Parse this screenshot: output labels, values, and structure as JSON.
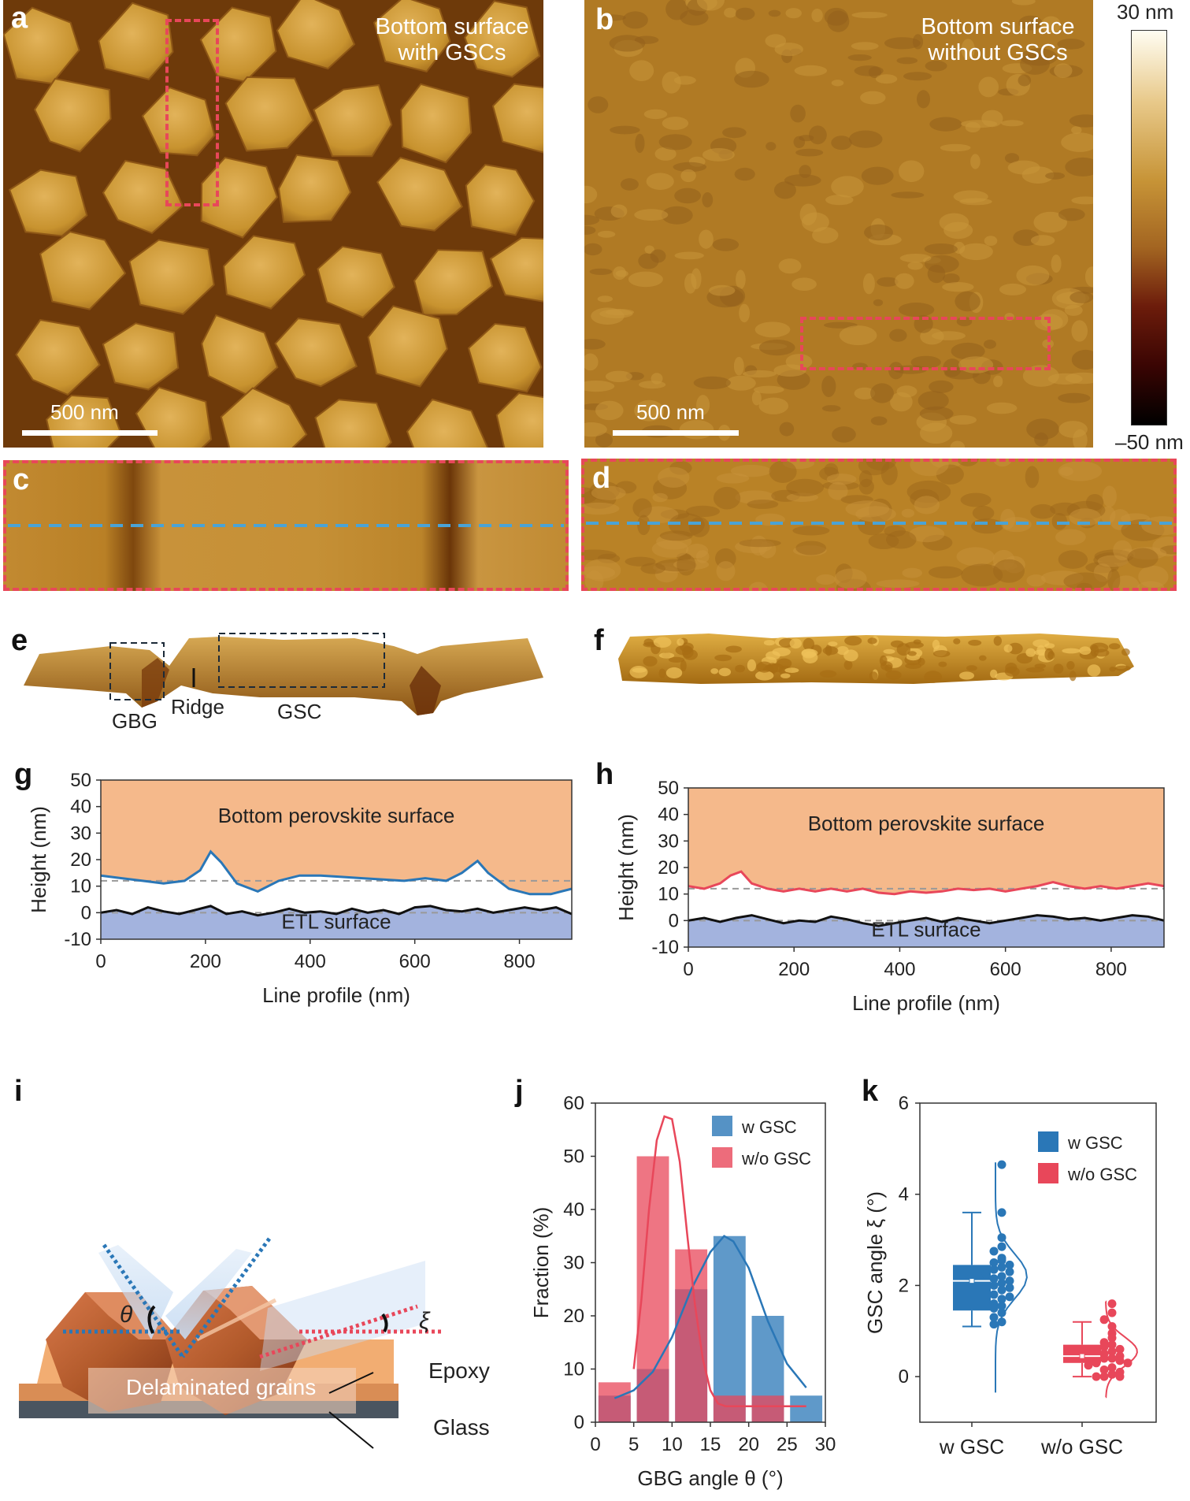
{
  "panels": {
    "a": {
      "label": "a",
      "title_lines": [
        "Bottom surface",
        "with GSCs"
      ],
      "scale_label": "500 nm"
    },
    "b": {
      "label": "b",
      "title_lines": [
        "Bottom surface",
        "without GSCs"
      ],
      "scale_label": "500 nm"
    },
    "c": {
      "label": "c"
    },
    "d": {
      "label": "d"
    },
    "e": {
      "label": "e",
      "annotations": {
        "gbg": "GBG",
        "ridge": "Ridge",
        "gsc": "GSC"
      }
    },
    "f": {
      "label": "f"
    },
    "i": {
      "label": "i",
      "labels": {
        "theta": "θ",
        "xi": "ξ",
        "delaminated": "Delaminated grains",
        "epoxy": "Epoxy",
        "glass": "Glass"
      }
    }
  },
  "colorbar": {
    "max_label": "30 nm",
    "min_label": "–50 nm"
  },
  "colors": {
    "blue": "#2a77b7",
    "red": "#e8475a",
    "afm_mid": "#b07a24",
    "fill_top": "#f5b98b",
    "fill_bottom": "#a3b3de"
  },
  "chart_data": [
    {
      "id": "g",
      "label": "g",
      "type": "line",
      "xlabel": "Line profile (nm)",
      "ylabel": "Height (nm)",
      "xlim": [
        0,
        900
      ],
      "ylim": [
        -10,
        50
      ],
      "xticks": [
        0,
        200,
        400,
        600,
        800
      ],
      "yticks": [
        -10,
        0,
        10,
        20,
        30,
        40,
        50
      ],
      "region_labels": {
        "top": "Bottom perovskite surface",
        "bottom": "ETL surface"
      },
      "series": [
        {
          "role": "perovskite",
          "color": "#2a77b7",
          "x": [
            0,
            40,
            80,
            120,
            160,
            190,
            210,
            230,
            260,
            300,
            340,
            380,
            420,
            460,
            500,
            540,
            580,
            620,
            660,
            690,
            710,
            720,
            740,
            780,
            820,
            860,
            900
          ],
          "y": [
            14,
            13,
            12,
            11,
            12,
            16,
            23,
            19,
            11,
            8,
            12,
            14,
            14,
            13.5,
            13,
            12.5,
            12,
            13,
            12,
            15,
            18,
            19.5,
            15,
            9,
            7,
            7,
            9
          ]
        },
        {
          "role": "etl",
          "color": "#111111",
          "x": [
            0,
            30,
            60,
            90,
            120,
            150,
            180,
            210,
            240,
            270,
            300,
            330,
            360,
            390,
            420,
            450,
            480,
            510,
            540,
            570,
            600,
            630,
            660,
            690,
            720,
            750,
            780,
            810,
            840,
            870,
            900
          ],
          "y": [
            0,
            1,
            -0.5,
            2,
            0.5,
            -0.5,
            1,
            2.5,
            -0.5,
            0.5,
            -1,
            0,
            1.5,
            0,
            0.5,
            -0.5,
            1.5,
            0,
            1,
            -0.5,
            2,
            2.5,
            1,
            0.5,
            1.5,
            0,
            1,
            2,
            1,
            2,
            -0.5
          ]
        }
      ],
      "ref_lines": [
        12,
        0
      ]
    },
    {
      "id": "h",
      "label": "h",
      "type": "line",
      "xlabel": "Line profile (nm)",
      "ylabel": "Height (nm)",
      "xlim": [
        0,
        900
      ],
      "ylim": [
        -10,
        50
      ],
      "xticks": [
        0,
        200,
        400,
        600,
        800
      ],
      "yticks": [
        -10,
        0,
        10,
        20,
        30,
        40,
        50
      ],
      "region_labels": {
        "top": "Bottom perovskite surface",
        "bottom": "ETL surface"
      },
      "series": [
        {
          "role": "perovskite",
          "color": "#e8475a",
          "x": [
            0,
            30,
            60,
            80,
            100,
            120,
            150,
            180,
            210,
            240,
            270,
            300,
            330,
            360,
            390,
            420,
            450,
            480,
            510,
            540,
            570,
            600,
            630,
            660,
            690,
            720,
            750,
            780,
            810,
            840,
            870,
            900
          ],
          "y": [
            13,
            12,
            14,
            17,
            18.5,
            14,
            12,
            11,
            12,
            11,
            12,
            11,
            12,
            10.5,
            10,
            11,
            10.5,
            11,
            12,
            11.5,
            12,
            11,
            12,
            13,
            14.5,
            13,
            12,
            13,
            12,
            13,
            14,
            13
          ]
        },
        {
          "role": "etl",
          "color": "#111111",
          "x": [
            0,
            30,
            60,
            90,
            120,
            150,
            180,
            210,
            240,
            270,
            300,
            330,
            360,
            390,
            420,
            450,
            480,
            510,
            540,
            570,
            600,
            630,
            660,
            690,
            720,
            750,
            780,
            810,
            840,
            870,
            900
          ],
          "y": [
            0,
            1,
            -0.5,
            1,
            2,
            0.5,
            -1,
            0,
            -0.5,
            1.5,
            0.5,
            -1,
            -2,
            -1,
            0,
            1,
            -0.5,
            1,
            0,
            -1,
            0,
            1,
            2,
            1.5,
            0.5,
            1,
            0,
            1,
            2,
            1.5,
            0
          ]
        }
      ],
      "ref_lines": [
        12,
        0
      ]
    },
    {
      "id": "j",
      "label": "j",
      "type": "bar",
      "xlabel": "GBG angle θ (°)",
      "ylabel": "Fraction (%)",
      "xlim": [
        0,
        30
      ],
      "ylim": [
        0,
        60
      ],
      "xticks": [
        0,
        5,
        10,
        15,
        20,
        25,
        30
      ],
      "yticks": [
        0,
        10,
        20,
        30,
        40,
        50,
        60
      ],
      "bin_centers": [
        2.5,
        7.5,
        12.5,
        17.5,
        22.5,
        27.5
      ],
      "series": [
        {
          "name": "w GSC",
          "color": "#2a77b7",
          "values": [
            5,
            10,
            25,
            35,
            20,
            5
          ],
          "fit_x": [
            2.5,
            5,
            7.5,
            10,
            12.5,
            15,
            16.8,
            18,
            20,
            22.5,
            25,
            27.5
          ],
          "fit_y": [
            4.5,
            6,
            9.5,
            16,
            25,
            32,
            35,
            34,
            29,
            19,
            11,
            6.5
          ]
        },
        {
          "name": "w/o GSC",
          "color": "#e8475a",
          "values": [
            7.5,
            50,
            32.5,
            5,
            5,
            0
          ],
          "fit_x": [
            5,
            6,
            7,
            8,
            9,
            10,
            11,
            12,
            13,
            14,
            15,
            16,
            17,
            18,
            20,
            22.5,
            25,
            27.5
          ],
          "fit_y": [
            10,
            23,
            40,
            53,
            57.5,
            57,
            49,
            35,
            22,
            12,
            6,
            3.5,
            3,
            3,
            3,
            3,
            3,
            3
          ]
        }
      ]
    },
    {
      "id": "k",
      "label": "k",
      "type": "box",
      "ylabel": "GSC angle ξ (°)",
      "ylim": [
        -1,
        6
      ],
      "yticks": [
        0,
        2,
        4,
        6
      ],
      "categories": [
        "w GSC",
        "w/o GSC"
      ],
      "series": [
        {
          "name": "w GSC",
          "color": "#2a77b7",
          "box": {
            "min": 1.1,
            "q1": 1.45,
            "median": 2.1,
            "q3": 2.45,
            "max": 3.6,
            "mean": 2.1
          },
          "points": [
            4.65,
            3.6,
            3.05,
            2.85,
            2.75,
            2.6,
            2.55,
            2.5,
            2.45,
            2.4,
            2.35,
            2.3,
            2.25,
            2.2,
            2.15,
            2.1,
            2.05,
            2.0,
            1.95,
            1.9,
            1.8,
            1.75,
            1.7,
            1.6,
            1.55,
            1.5,
            1.4,
            1.3,
            1.2,
            1.15
          ]
        },
        {
          "name": "w/o GSC",
          "color": "#e8475a",
          "box": {
            "min": 0.0,
            "q1": 0.3,
            "median": 0.45,
            "q3": 0.7,
            "max": 1.2,
            "mean": 0.45
          },
          "points": [
            1.6,
            1.4,
            1.25,
            1.1,
            0.95,
            0.85,
            0.75,
            0.7,
            0.65,
            0.6,
            0.55,
            0.5,
            0.45,
            0.4,
            0.4,
            0.35,
            0.3,
            0.3,
            0.25,
            0.2,
            0.15,
            0.1,
            0.05,
            0.0,
            0.0,
            0.0
          ]
        }
      ]
    }
  ]
}
